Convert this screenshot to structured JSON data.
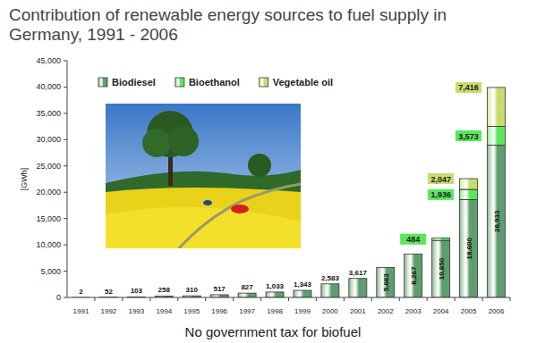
{
  "chart_data": {
    "type": "bar",
    "stacked": true,
    "title": "Contribution of renewable energy sources to fuel supply in Germany, 1991 - 2006",
    "y_label": "[GWh]",
    "annotations": [
      "No government tax for biofuel"
    ],
    "categories": [
      "1991",
      "1992",
      "1993",
      "1994",
      "1995",
      "1996",
      "1997",
      "1998",
      "1999",
      "2000",
      "2001",
      "2002",
      "2003",
      "2004",
      "2005",
      "2006"
    ],
    "series": [
      {
        "name": "Biodiesel",
        "color": "#5e9e6e",
        "values": [
          2,
          52,
          103,
          258,
          310,
          517,
          827,
          1033,
          1343,
          2583,
          3617,
          5683,
          8267,
          10850,
          18600,
          28933
        ],
        "value_labels": [
          "2",
          "52",
          "103",
          "258",
          "310",
          "517",
          "827",
          "1,033",
          "1,343",
          "2,583",
          "3,617",
          "5,683",
          "8,267",
          "10,850",
          "18,600",
          "28,933"
        ]
      },
      {
        "name": "Bioethanol",
        "color": "#5ce65c",
        "values": [
          null,
          null,
          null,
          null,
          null,
          null,
          null,
          null,
          null,
          null,
          null,
          null,
          null,
          484,
          1936,
          3573
        ],
        "value_labels": [
          null,
          null,
          null,
          null,
          null,
          null,
          null,
          null,
          null,
          null,
          null,
          null,
          null,
          "484",
          "1,936",
          "3,573"
        ]
      },
      {
        "name": "Vegetable oil",
        "color": "#c8dc6e",
        "values": [
          null,
          null,
          null,
          null,
          null,
          null,
          null,
          null,
          null,
          null,
          null,
          null,
          null,
          null,
          2047,
          7416
        ],
        "value_labels": [
          null,
          null,
          null,
          null,
          null,
          null,
          null,
          null,
          null,
          null,
          null,
          null,
          null,
          null,
          "2,047",
          "7,416"
        ]
      }
    ],
    "ylim": [
      0,
      45000
    ],
    "yticks": [
      0,
      {
        "value": 5000,
        "label": "5,000"
      },
      {
        "value": 10000,
        "label": "10,000"
      },
      {
        "value": 15000,
        "label": "15,000"
      },
      {
        "value": 20000,
        "label": "20,000"
      },
      {
        "value": 25000,
        "label": "25,000"
      },
      {
        "value": 30000,
        "label": "30,000"
      },
      {
        "value": 35000,
        "label": "35,000"
      },
      {
        "value": 40000,
        "label": "40,000"
      },
      {
        "value": 45000,
        "label": "45,000"
      }
    ],
    "grid": false,
    "legend": "top-left",
    "data_labels": true
  }
}
